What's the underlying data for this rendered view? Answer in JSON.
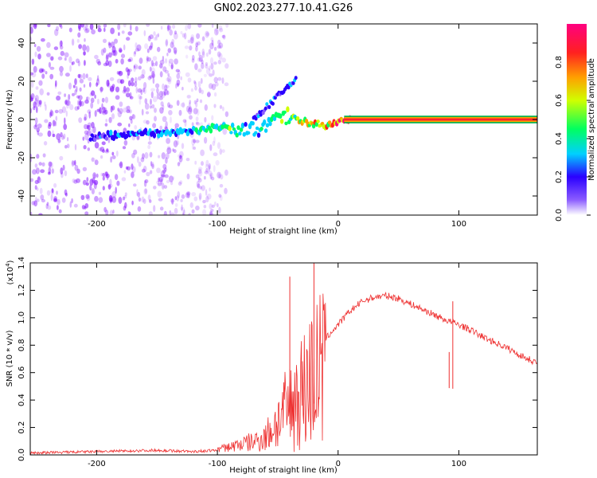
{
  "title": "GN02.2023.277.10.41.G26",
  "colors": {
    "signal": "#ee3030",
    "scatter": "#7a00ff",
    "background": "#ffffff"
  },
  "chart_data": [
    {
      "type": "heatmap",
      "name": "spectrogram",
      "xlabel": "Height of straight line (km)",
      "ylabel": "Frequency (Hz)",
      "xlim": [
        -255,
        165
      ],
      "ylim": [
        -50,
        50
      ],
      "xticks": [
        -200,
        -100,
        0,
        100
      ],
      "xtick_labels": [
        "-200",
        "-100",
        "0",
        "100"
      ],
      "yticks": [
        -40,
        -20,
        0,
        20,
        40
      ],
      "ytick_labels": [
        "-40",
        "-20",
        "0",
        "20",
        "40"
      ],
      "colorbar": {
        "label": "Normalized spectral amplitude",
        "range": [
          0,
          1
        ],
        "ticks": [
          0.0,
          0.2,
          0.4,
          0.6,
          0.8
        ],
        "tick_labels": [
          "0.0",
          "0.2",
          "0.4",
          "0.6",
          "0.8"
        ]
      },
      "ridge": {
        "x": [
          -205,
          -180,
          -150,
          -120,
          -100,
          -90,
          -80,
          -70,
          -60,
          -50,
          -40,
          -30,
          -20,
          -10,
          0,
          10,
          165
        ],
        "freq_hz": [
          -9,
          -8,
          -7,
          -6,
          -4,
          -3,
          -5,
          -6,
          -2,
          3,
          1,
          -1,
          -2,
          -3,
          -1,
          0,
          0
        ],
        "amplitude": [
          0.25,
          0.28,
          0.35,
          0.4,
          0.45,
          0.5,
          0.45,
          0.35,
          0.4,
          0.45,
          0.55,
          0.6,
          0.7,
          0.8,
          0.9,
          1.0,
          1.0
        ]
      },
      "noise_region_x": [
        -255,
        -100
      ]
    },
    {
      "type": "line",
      "name": "snr",
      "xlabel": "Height of straight line (km)",
      "ylabel": "SNR (10 * v/v)",
      "scale_label": "(x10",
      "scale_exponent": "4",
      "scale_close": ")",
      "xlim": [
        -255,
        165
      ],
      "ylim": [
        0,
        1.4
      ],
      "xticks": [
        -200,
        -100,
        0,
        100
      ],
      "xtick_labels": [
        "-200",
        "-100",
        "0",
        "100"
      ],
      "yticks": [
        0.0,
        0.2,
        0.4,
        0.6,
        0.8,
        1.0,
        1.2,
        1.4
      ],
      "ytick_labels": [
        "0.0",
        "0.2",
        "0.4",
        "0.6",
        "0.8",
        "1.0",
        "1.2",
        "1.4"
      ],
      "envelope": {
        "x": [
          -255,
          -200,
          -150,
          -120,
          -100,
          -90,
          -80,
          -70,
          -60,
          -50,
          -40,
          -30,
          -20,
          -10,
          0,
          10,
          20,
          30,
          40,
          50,
          60,
          70,
          80,
          90,
          100,
          110,
          120,
          130,
          140,
          150,
          165
        ],
        "y": [
          0.01,
          0.02,
          0.03,
          0.02,
          0.03,
          0.05,
          0.08,
          0.1,
          0.15,
          0.3,
          0.45,
          0.6,
          0.75,
          0.85,
          0.95,
          1.05,
          1.12,
          1.15,
          1.16,
          1.14,
          1.1,
          1.06,
          1.02,
          0.98,
          0.95,
          0.91,
          0.86,
          0.82,
          0.78,
          0.73,
          0.67
        ]
      },
      "spikes": [
        {
          "x": -20,
          "y": 1.43
        },
        {
          "x": -40,
          "y": 1.3
        },
        {
          "x": 95,
          "y": 1.12
        },
        {
          "x": 92,
          "y": 0.75
        }
      ]
    }
  ]
}
